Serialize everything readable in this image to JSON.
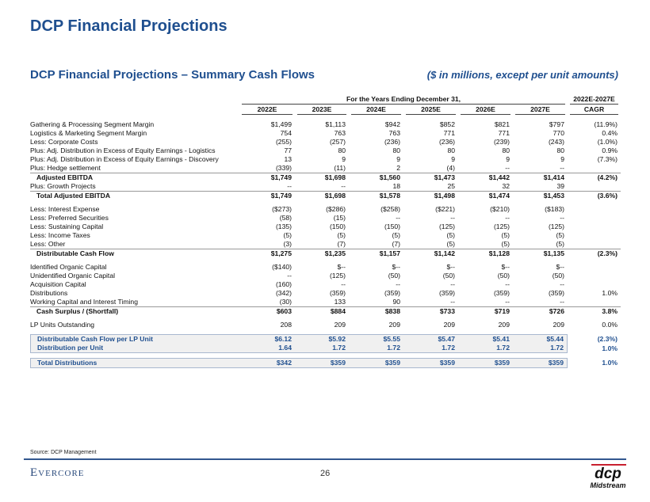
{
  "header": {
    "title": "DCP Financial Projections",
    "subtitle": "DCP Financial Projections – Summary Cash Flows",
    "units": "($ in millions, except per unit amounts)"
  },
  "table": {
    "period_header": "For the Years Ending December 31,",
    "cagr_header_top": "2022E-2027E",
    "columns": [
      "2022E",
      "2023E",
      "2024E",
      "2025E",
      "2026E",
      "2027E"
    ],
    "cagr_header": "CAGR",
    "rows": [
      {
        "label": "Gathering & Processing Segment Margin",
        "values": [
          "$1,499",
          "$1,113",
          "$942",
          "$852",
          "$821",
          "$797"
        ],
        "cagr": "(11.9%)"
      },
      {
        "label": "Logistics & Marketing Segment Margin",
        "values": [
          "754",
          "763",
          "763",
          "771",
          "771",
          "770"
        ],
        "cagr": "0.4%"
      },
      {
        "label": "Less: Corporate Costs",
        "values": [
          "(255)",
          "(257)",
          "(236)",
          "(236)",
          "(239)",
          "(243)"
        ],
        "cagr": "(1.0%)"
      },
      {
        "label": "Plus: Adj. Distribution in Excess of Equity Earnings - Logistics",
        "values": [
          "77",
          "80",
          "80",
          "80",
          "80",
          "80"
        ],
        "cagr": "0.9%"
      },
      {
        "label": "Plus: Adj. Distribution in Excess of Equity Earnings - Discovery",
        "values": [
          "13",
          "9",
          "9",
          "9",
          "9",
          "9"
        ],
        "cagr": "(7.3%)"
      },
      {
        "label": "Plus: Hedge settlement",
        "values": [
          "(339)",
          "(11)",
          "2",
          "(4)",
          "--",
          "--"
        ],
        "cagr": ""
      },
      {
        "label": "Adjusted EBITDA",
        "values": [
          "$1,749",
          "$1,698",
          "$1,560",
          "$1,473",
          "$1,442",
          "$1,414"
        ],
        "cagr": "(4.2%)",
        "style": "bold"
      },
      {
        "label": "Plus: Growth Projects",
        "values": [
          "--",
          "--",
          "18",
          "25",
          "32",
          "39"
        ],
        "cagr": ""
      },
      {
        "label": "Total Adjusted EBITDA",
        "values": [
          "$1,749",
          "$1,698",
          "$1,578",
          "$1,498",
          "$1,474",
          "$1,453"
        ],
        "cagr": "(3.6%)",
        "style": "bold"
      },
      {
        "style": "gap"
      },
      {
        "label": "Less: Interest Expense",
        "values": [
          "($273)",
          "($286)",
          "($258)",
          "($221)",
          "($210)",
          "($183)"
        ],
        "cagr": ""
      },
      {
        "label": "Less: Preferred Securities",
        "values": [
          "(58)",
          "(15)",
          "--",
          "--",
          "--",
          "--"
        ],
        "cagr": ""
      },
      {
        "label": "Less: Sustaining Capital",
        "values": [
          "(135)",
          "(150)",
          "(150)",
          "(125)",
          "(125)",
          "(125)"
        ],
        "cagr": ""
      },
      {
        "label": "Less: Income Taxes",
        "values": [
          "(5)",
          "(5)",
          "(5)",
          "(5)",
          "(5)",
          "(5)"
        ],
        "cagr": ""
      },
      {
        "label": "Less: Other",
        "values": [
          "(3)",
          "(7)",
          "(7)",
          "(5)",
          "(5)",
          "(5)"
        ],
        "cagr": ""
      },
      {
        "label": "Distributable Cash Flow",
        "values": [
          "$1,275",
          "$1,235",
          "$1,157",
          "$1,142",
          "$1,128",
          "$1,135"
        ],
        "cagr": "(2.3%)",
        "style": "bold"
      },
      {
        "style": "gap"
      },
      {
        "label": "Identified Organic Capital",
        "values": [
          "($140)",
          "$--",
          "$--",
          "$--",
          "$--",
          "$--"
        ],
        "cagr": ""
      },
      {
        "label": "Unidentified Organic Capital",
        "values": [
          "--",
          "(125)",
          "(50)",
          "(50)",
          "(50)",
          "(50)"
        ],
        "cagr": ""
      },
      {
        "label": "Acquisition Capital",
        "values": [
          "(160)",
          "--",
          "--",
          "--",
          "--",
          "--"
        ],
        "cagr": ""
      },
      {
        "label": "Distributions",
        "values": [
          "(342)",
          "(359)",
          "(359)",
          "(359)",
          "(359)",
          "(359)"
        ],
        "cagr": "1.0%"
      },
      {
        "label": "Working Capital and Interest Timing",
        "values": [
          "(30)",
          "133",
          "90",
          "--",
          "--",
          "--"
        ],
        "cagr": ""
      },
      {
        "label": "Cash Surplus / (Shortfall)",
        "values": [
          "$603",
          "$884",
          "$838",
          "$733",
          "$719",
          "$726"
        ],
        "cagr": "3.8%",
        "style": "bold"
      },
      {
        "style": "gap"
      },
      {
        "label": "LP Units Outstanding",
        "values": [
          "208",
          "209",
          "209",
          "209",
          "209",
          "209"
        ],
        "cagr": "0.0%"
      },
      {
        "style": "gap"
      },
      {
        "label": "Distributable Cash Flow per LP Unit",
        "values": [
          "$6.12",
          "$5.92",
          "$5.55",
          "$5.47",
          "$5.41",
          "$5.44"
        ],
        "cagr": "(2.3%)",
        "style": "hl hl-top"
      },
      {
        "label": "Distribution per Unit",
        "values": [
          "1.64",
          "1.72",
          "1.72",
          "1.72",
          "1.72",
          "1.72"
        ],
        "cagr": "1.0%",
        "style": "hl hl-bot"
      },
      {
        "style": "gap"
      },
      {
        "label": "Total Distributions",
        "values": [
          "$342",
          "$359",
          "$359",
          "$359",
          "$359",
          "$359"
        ],
        "cagr": "1.0%",
        "style": "hl hl-top hl-bot"
      }
    ]
  },
  "footer": {
    "source": "Source: DCP Management",
    "brand": "Evercore",
    "page": "26",
    "logo_top": "dcp",
    "logo_bottom": "Midstream"
  }
}
